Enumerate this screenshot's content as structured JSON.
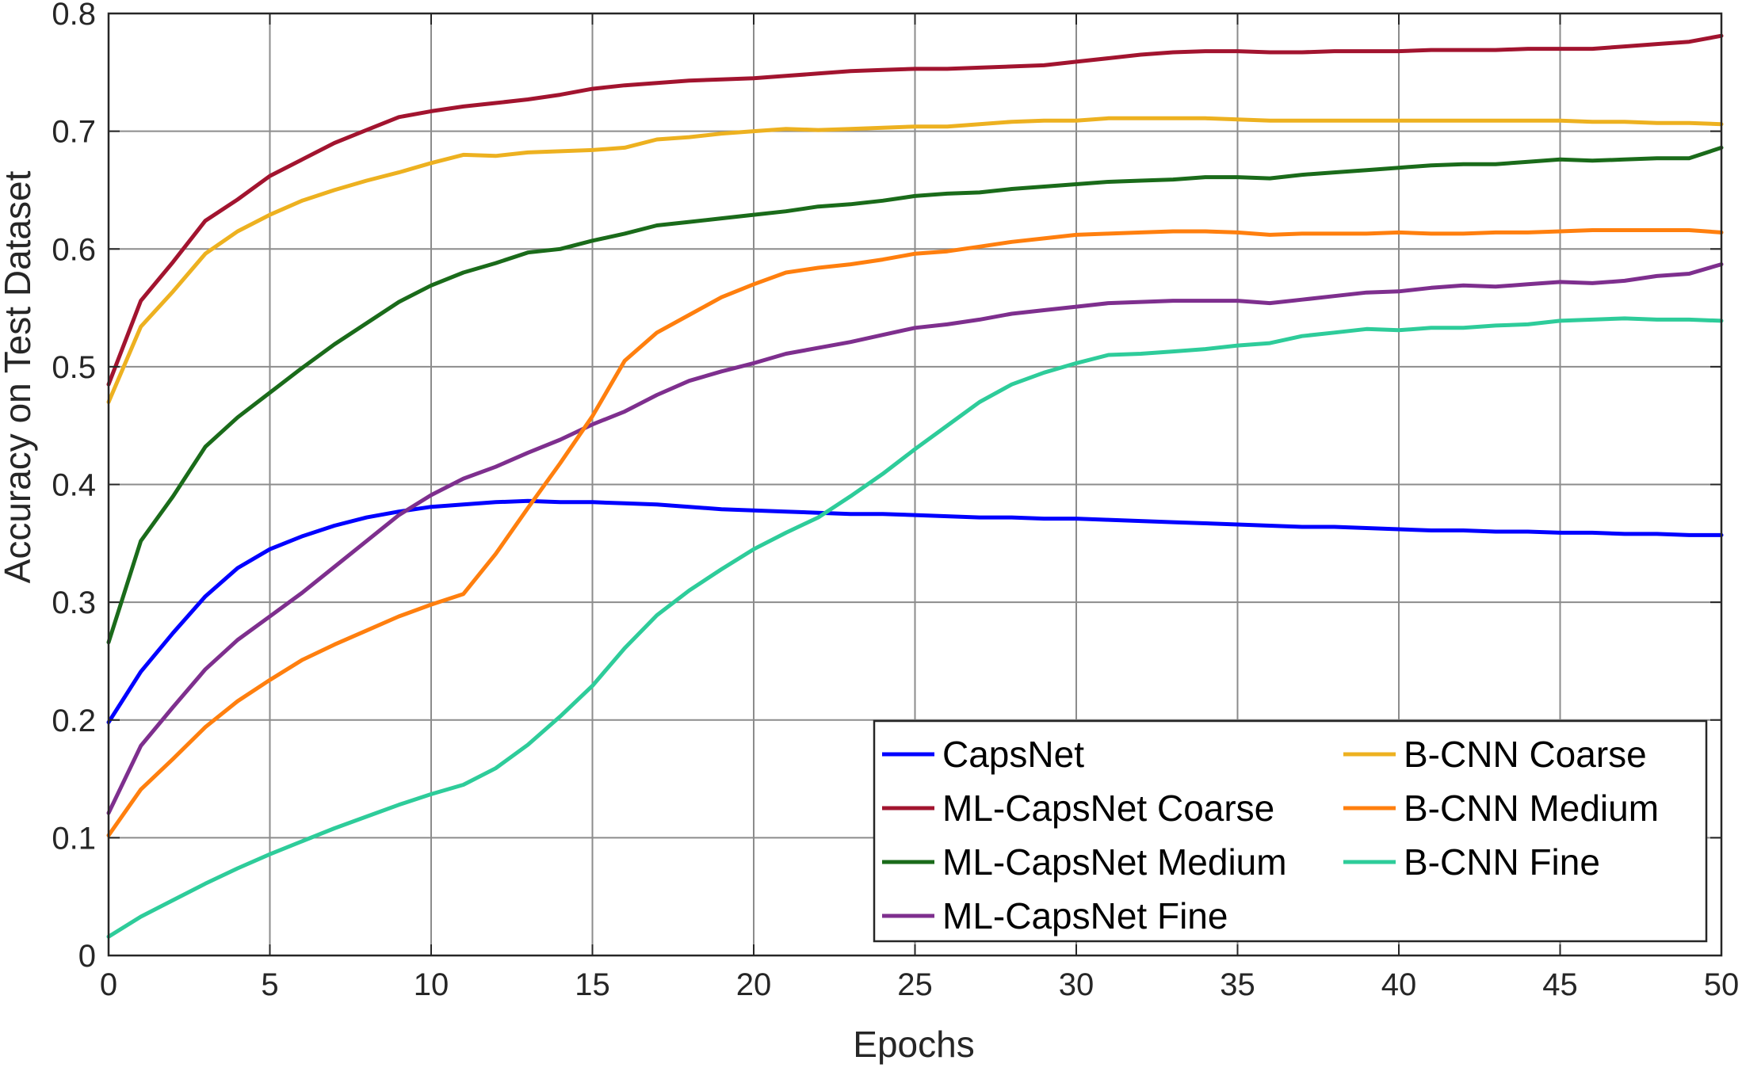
{
  "chart_data": {
    "type": "line",
    "title": "",
    "xlabel": "Epochs",
    "ylabel": "Accuracy on Test Dataset",
    "xlim": [
      0,
      50
    ],
    "ylim": [
      0,
      0.8
    ],
    "xticks": [
      "0",
      "5",
      "10",
      "15",
      "20",
      "25",
      "30",
      "35",
      "40",
      "45",
      "50"
    ],
    "yticks": [
      "0",
      "0.1",
      "0.2",
      "0.3",
      "0.4",
      "0.5",
      "0.6",
      "0.7",
      "0.8"
    ],
    "grid": true,
    "legend": {
      "position": "bottom-right",
      "columns": 2
    },
    "x": [
      0,
      1,
      2,
      3,
      4,
      5,
      6,
      7,
      8,
      9,
      10,
      11,
      12,
      13,
      14,
      15,
      16,
      17,
      18,
      19,
      20,
      21,
      22,
      23,
      24,
      25,
      26,
      27,
      28,
      29,
      30,
      31,
      32,
      33,
      34,
      35,
      36,
      37,
      38,
      39,
      40,
      41,
      42,
      43,
      44,
      45,
      46,
      47,
      48,
      49,
      50
    ],
    "series": [
      {
        "name": "CapsNet",
        "color": "#0000ff",
        "values": [
          0.198,
          0.241,
          0.274,
          0.305,
          0.329,
          0.345,
          0.356,
          0.365,
          0.372,
          0.377,
          0.381,
          0.383,
          0.385,
          0.386,
          0.385,
          0.385,
          0.384,
          0.383,
          0.381,
          0.379,
          0.378,
          0.377,
          0.376,
          0.375,
          0.375,
          0.374,
          0.373,
          0.372,
          0.372,
          0.371,
          0.371,
          0.37,
          0.369,
          0.368,
          0.367,
          0.366,
          0.365,
          0.364,
          0.364,
          0.363,
          0.362,
          0.361,
          0.361,
          0.36,
          0.36,
          0.359,
          0.359,
          0.358,
          0.358,
          0.357,
          0.357
        ]
      },
      {
        "name": "ML-CapsNet Coarse",
        "color": "#a2142f",
        "values": [
          0.485,
          0.556,
          0.589,
          0.624,
          0.642,
          0.662,
          0.676,
          0.69,
          0.701,
          0.712,
          0.717,
          0.721,
          0.724,
          0.727,
          0.731,
          0.736,
          0.739,
          0.741,
          0.743,
          0.744,
          0.745,
          0.747,
          0.749,
          0.751,
          0.752,
          0.753,
          0.753,
          0.754,
          0.755,
          0.756,
          0.759,
          0.762,
          0.765,
          0.767,
          0.768,
          0.768,
          0.767,
          0.767,
          0.768,
          0.768,
          0.768,
          0.769,
          0.769,
          0.769,
          0.77,
          0.77,
          0.77,
          0.772,
          0.774,
          0.776,
          0.781
        ]
      },
      {
        "name": "ML-CapsNet Medium",
        "color": "#1a6b1a",
        "values": [
          0.266,
          0.352,
          0.39,
          0.432,
          0.457,
          0.478,
          0.499,
          0.519,
          0.537,
          0.555,
          0.569,
          0.58,
          0.588,
          0.597,
          0.6,
          0.607,
          0.613,
          0.62,
          0.623,
          0.626,
          0.629,
          0.632,
          0.636,
          0.638,
          0.641,
          0.645,
          0.647,
          0.648,
          0.651,
          0.653,
          0.655,
          0.657,
          0.658,
          0.659,
          0.661,
          0.661,
          0.66,
          0.663,
          0.665,
          0.667,
          0.669,
          0.671,
          0.672,
          0.672,
          0.674,
          0.676,
          0.675,
          0.676,
          0.677,
          0.677,
          0.686
        ]
      },
      {
        "name": "ML-CapsNet Fine",
        "color": "#7e2f8e",
        "values": [
          0.121,
          0.178,
          0.211,
          0.243,
          0.268,
          0.288,
          0.308,
          0.33,
          0.352,
          0.374,
          0.391,
          0.405,
          0.415,
          0.427,
          0.438,
          0.451,
          0.462,
          0.476,
          0.488,
          0.496,
          0.503,
          0.511,
          0.516,
          0.521,
          0.527,
          0.533,
          0.536,
          0.54,
          0.545,
          0.548,
          0.551,
          0.554,
          0.555,
          0.556,
          0.556,
          0.556,
          0.554,
          0.557,
          0.56,
          0.563,
          0.564,
          0.567,
          0.569,
          0.568,
          0.57,
          0.572,
          0.571,
          0.573,
          0.577,
          0.579,
          0.587
        ]
      },
      {
        "name": "B-CNN Coarse",
        "color": "#edb120",
        "values": [
          0.47,
          0.534,
          0.564,
          0.596,
          0.615,
          0.629,
          0.641,
          0.65,
          0.658,
          0.665,
          0.673,
          0.68,
          0.679,
          0.682,
          0.683,
          0.684,
          0.686,
          0.693,
          0.695,
          0.698,
          0.7,
          0.702,
          0.701,
          0.702,
          0.703,
          0.704,
          0.704,
          0.706,
          0.708,
          0.709,
          0.709,
          0.711,
          0.711,
          0.711,
          0.711,
          0.71,
          0.709,
          0.709,
          0.709,
          0.709,
          0.709,
          0.709,
          0.709,
          0.709,
          0.709,
          0.709,
          0.708,
          0.708,
          0.707,
          0.707,
          0.706
        ]
      },
      {
        "name": "B-CNN Medium",
        "color": "#ff7f0e",
        "values": [
          0.102,
          0.141,
          0.167,
          0.194,
          0.216,
          0.234,
          0.251,
          0.264,
          0.276,
          0.288,
          0.298,
          0.307,
          0.341,
          0.38,
          0.418,
          0.458,
          0.505,
          0.529,
          0.544,
          0.559,
          0.57,
          0.58,
          0.584,
          0.587,
          0.591,
          0.596,
          0.598,
          0.602,
          0.606,
          0.609,
          0.612,
          0.613,
          0.614,
          0.615,
          0.615,
          0.614,
          0.612,
          0.613,
          0.613,
          0.613,
          0.614,
          0.613,
          0.613,
          0.614,
          0.614,
          0.615,
          0.616,
          0.616,
          0.616,
          0.616,
          0.614
        ]
      },
      {
        "name": "B-CNN Fine",
        "color": "#2ecc9a",
        "values": [
          0.016,
          0.033,
          0.047,
          0.061,
          0.074,
          0.086,
          0.097,
          0.108,
          0.118,
          0.128,
          0.137,
          0.145,
          0.159,
          0.179,
          0.203,
          0.229,
          0.261,
          0.289,
          0.31,
          0.328,
          0.345,
          0.359,
          0.372,
          0.39,
          0.409,
          0.43,
          0.45,
          0.47,
          0.485,
          0.495,
          0.503,
          0.51,
          0.511,
          0.513,
          0.515,
          0.518,
          0.52,
          0.526,
          0.529,
          0.532,
          0.531,
          0.533,
          0.533,
          0.535,
          0.536,
          0.539,
          0.54,
          0.541,
          0.54,
          0.54,
          0.539
        ]
      }
    ]
  }
}
